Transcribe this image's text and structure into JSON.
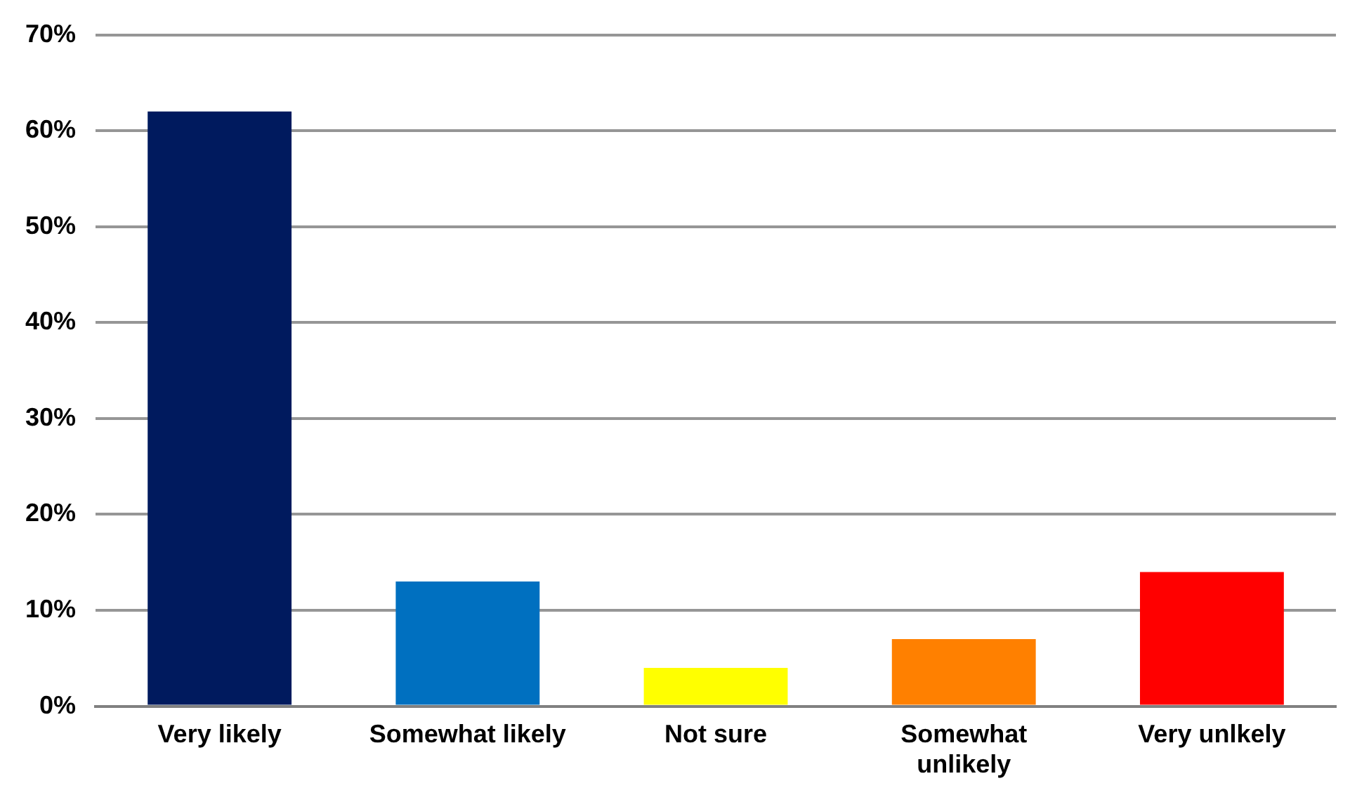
{
  "chart_data": {
    "type": "bar",
    "categories": [
      "Very likely",
      "Somewhat likely",
      "Not sure",
      "Somewhat unlikely",
      "Very unlkely"
    ],
    "values": [
      62,
      13,
      4,
      7,
      14
    ],
    "colors": [
      "#001a5e",
      "#0070c0",
      "#ffff00",
      "#ff8000",
      "#ff0000"
    ],
    "ylim": [
      0,
      70
    ],
    "yticks": [
      {
        "value": 0,
        "label": "0%"
      },
      {
        "value": 10,
        "label": "10%"
      },
      {
        "value": 20,
        "label": "20%"
      },
      {
        "value": 30,
        "label": "30%"
      },
      {
        "value": 40,
        "label": "40%"
      },
      {
        "value": 50,
        "label": "50%"
      },
      {
        "value": 60,
        "label": "60%"
      },
      {
        "value": 70,
        "label": "70%"
      }
    ],
    "grid": "y",
    "legend": false
  }
}
